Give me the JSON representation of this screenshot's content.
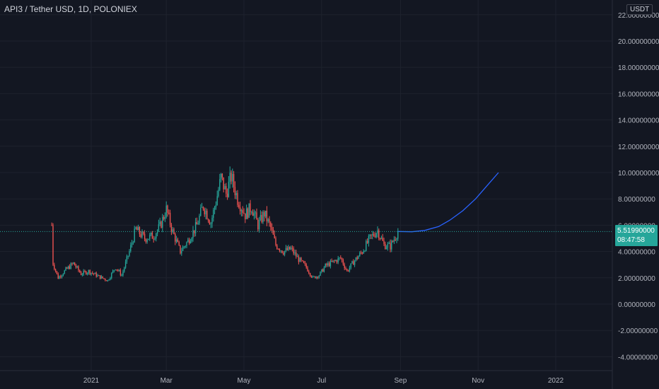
{
  "header": {
    "symbol_title": "API3 / Tether USD, 1D, POLONIEX",
    "currency_badge": "USDT"
  },
  "price_tag": {
    "price": "5.51990000",
    "countdown": "08:47:58"
  },
  "colors": {
    "background": "#131722",
    "grid": "#1e222d",
    "up": "#26a69a",
    "down": "#ef5350",
    "projection": "#2962ff",
    "axis_text": "#b2b5be"
  },
  "chart_data": {
    "type": "candlestick",
    "title": "API3 / Tether USD, 1D, POLONIEX",
    "xlabel": "",
    "ylabel": "",
    "x_ticks": [
      "2021",
      "Mar",
      "May",
      "Jul",
      "Sep",
      "Nov",
      "2022"
    ],
    "y_ticks": [
      "22.00000000",
      "20.00000000",
      "18.00000000",
      "16.00000000",
      "14.00000000",
      "12.00000000",
      "10.00000000",
      "8.00000000",
      "6.00000000",
      "4.00000000",
      "2.00000000",
      "0.00000000",
      "-2.00000000",
      "-4.00000000"
    ],
    "ylim": [
      -5.2,
      22.4
    ],
    "last_price": 5.5199,
    "grid": true,
    "series": [
      {
        "name": "",
        "kind": "close_path",
        "points": [
          [
            "2020-12-01",
            6.0
          ],
          [
            "2020-12-02",
            3.1
          ],
          [
            "2020-12-06",
            2.0
          ],
          [
            "2020-12-12",
            2.6
          ],
          [
            "2020-12-18",
            3.1
          ],
          [
            "2020-12-24",
            2.3
          ],
          [
            "2020-12-30",
            2.5
          ],
          [
            "2021-01-07",
            2.1
          ],
          [
            "2021-01-14",
            1.8
          ],
          [
            "2021-01-20",
            2.8
          ],
          [
            "2021-01-25",
            2.2
          ],
          [
            "2021-01-31",
            4.0
          ],
          [
            "2021-02-05",
            5.7
          ],
          [
            "2021-02-12",
            5.0
          ],
          [
            "2021-02-19",
            5.2
          ],
          [
            "2021-02-24",
            5.9
          ],
          [
            "2021-03-01",
            7.2
          ],
          [
            "2021-03-06",
            5.5
          ],
          [
            "2021-03-12",
            4.0
          ],
          [
            "2021-03-18",
            4.8
          ],
          [
            "2021-03-25",
            6.0
          ],
          [
            "2021-03-30",
            7.5
          ],
          [
            "2021-04-05",
            6.2
          ],
          [
            "2021-04-09",
            7.8
          ],
          [
            "2021-04-13",
            9.6
          ],
          [
            "2021-04-17",
            8.4
          ],
          [
            "2021-04-21",
            9.7
          ],
          [
            "2021-04-26",
            8.0
          ],
          [
            "2021-05-02",
            6.8
          ],
          [
            "2021-05-07",
            7.4
          ],
          [
            "2021-05-12",
            6.0
          ],
          [
            "2021-05-17",
            6.9
          ],
          [
            "2021-05-22",
            5.8
          ],
          [
            "2021-05-26",
            4.5
          ],
          [
            "2021-06-01",
            4.0
          ],
          [
            "2021-06-07",
            4.2
          ],
          [
            "2021-06-13",
            3.4
          ],
          [
            "2021-06-19",
            2.8
          ],
          [
            "2021-06-24",
            2.0
          ],
          [
            "2021-06-29",
            2.2
          ],
          [
            "2021-07-04",
            2.9
          ],
          [
            "2021-07-10",
            3.2
          ],
          [
            "2021-07-16",
            3.5
          ],
          [
            "2021-07-21",
            2.5
          ],
          [
            "2021-07-26",
            3.2
          ],
          [
            "2021-08-02",
            4.0
          ],
          [
            "2021-08-08",
            5.0
          ],
          [
            "2021-08-14",
            5.6
          ],
          [
            "2021-08-19",
            4.5
          ],
          [
            "2021-08-24",
            4.4
          ],
          [
            "2021-08-30",
            5.5199
          ]
        ]
      },
      {
        "name": "",
        "kind": "projection",
        "points": [
          [
            "2021-08-30",
            5.52
          ],
          [
            "2021-09-10",
            5.5
          ],
          [
            "2021-09-20",
            5.6
          ],
          [
            "2021-10-01",
            5.9
          ],
          [
            "2021-10-10",
            6.4
          ],
          [
            "2021-10-20",
            7.1
          ],
          [
            "2021-10-30",
            8.0
          ],
          [
            "2021-11-08",
            9.0
          ],
          [
            "2021-11-17",
            10.0
          ]
        ]
      }
    ]
  }
}
